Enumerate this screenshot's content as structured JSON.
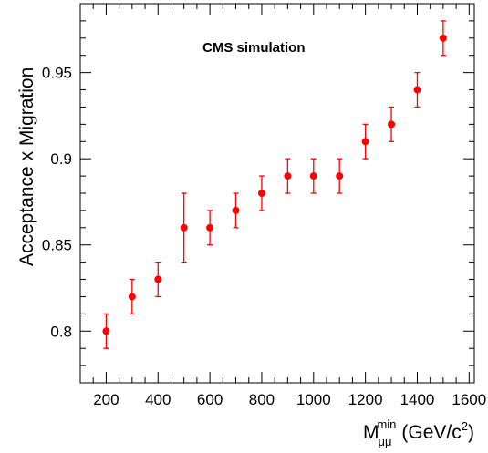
{
  "chart_data": {
    "type": "scatter",
    "annotation": "CMS simulation",
    "xlabel": {
      "main": "M",
      "sub": "μμ",
      "sup": "min",
      "unit_prefix": "(GeV/c",
      "unit_exp": "2",
      "unit_suffix": ")"
    },
    "ylabel": "Acceptance x Migration",
    "xlim": [
      100,
      1620
    ],
    "ylim": [
      0.77,
      0.99
    ],
    "xticks": [
      200,
      400,
      600,
      800,
      1000,
      1200,
      1400,
      1600
    ],
    "xtick_labels": [
      "200",
      "400",
      "600",
      "800",
      "1000",
      "1200",
      "1400",
      "1600"
    ],
    "yticks": [
      0.8,
      0.85,
      0.9,
      0.95
    ],
    "ytick_labels": [
      "0.8",
      "0.85",
      "0.9",
      "0.95"
    ],
    "grid": false,
    "marker_color": "#ff0000",
    "series": [
      {
        "x": [
          200,
          300,
          400,
          500,
          600,
          700,
          800,
          900,
          1000,
          1100,
          1200,
          1300,
          1400,
          1500
        ],
        "y": [
          0.8,
          0.82,
          0.83,
          0.86,
          0.86,
          0.87,
          0.88,
          0.89,
          0.89,
          0.89,
          0.91,
          0.92,
          0.94,
          0.97
        ],
        "yerr_low": [
          0.01,
          0.01,
          0.01,
          0.02,
          0.01,
          0.01,
          0.01,
          0.01,
          0.01,
          0.01,
          0.01,
          0.01,
          0.01,
          0.01
        ],
        "yerr_high": [
          0.01,
          0.01,
          0.01,
          0.02,
          0.01,
          0.01,
          0.01,
          0.01,
          0.01,
          0.01,
          0.01,
          0.01,
          0.01,
          0.01
        ]
      }
    ]
  }
}
